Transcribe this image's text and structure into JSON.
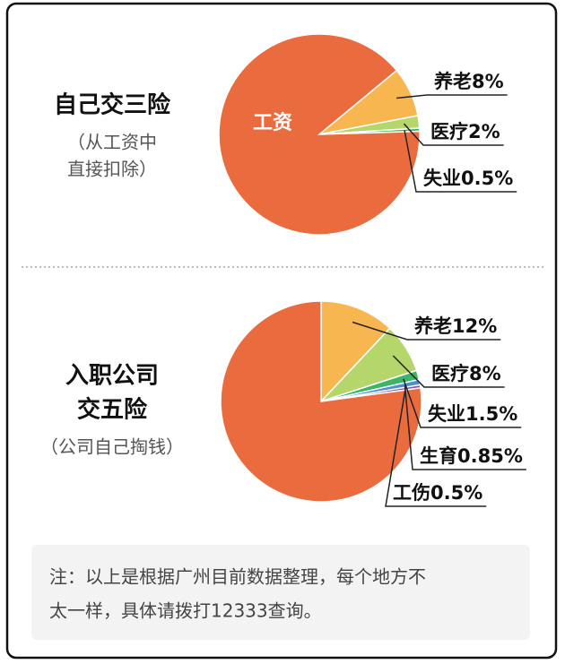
{
  "chart_data": [
    {
      "type": "pie",
      "title": [
        "自己交三险"
      ],
      "subtitle": [
        "（从工资中",
        "直接扣除）"
      ],
      "categories": [
        "工资",
        "养老",
        "医疗",
        "失业"
      ],
      "values": [
        89.5,
        8,
        2,
        0.5
      ],
      "value_labels": [
        null,
        "8%",
        "2%",
        "0.5%"
      ],
      "colors": [
        "#e96b3e",
        "#f7b64f",
        "#b5d66a",
        "#3cb569"
      ]
    },
    {
      "type": "pie",
      "title": [
        "入职公司",
        "交五险"
      ],
      "subtitle": [
        "（公司自己掏钱）"
      ],
      "categories": [
        null,
        "养老",
        "医疗",
        "失业",
        "生育",
        "工伤"
      ],
      "values": [
        77.15,
        12,
        8,
        1.5,
        0.85,
        0.5
      ],
      "value_labels": [
        null,
        "12%",
        "8%",
        "1.5%",
        "0.85%",
        "0.5%"
      ],
      "colors": [
        "#e96b3e",
        "#f7b64f",
        "#b5d66a",
        "#3cb569",
        "#4a8fd0",
        "#8a5ba8"
      ]
    }
  ],
  "note": [
    "注：以上是根据广州目前数据整理，每个地方不",
    "太一样，具体请拨打12333查询。"
  ]
}
